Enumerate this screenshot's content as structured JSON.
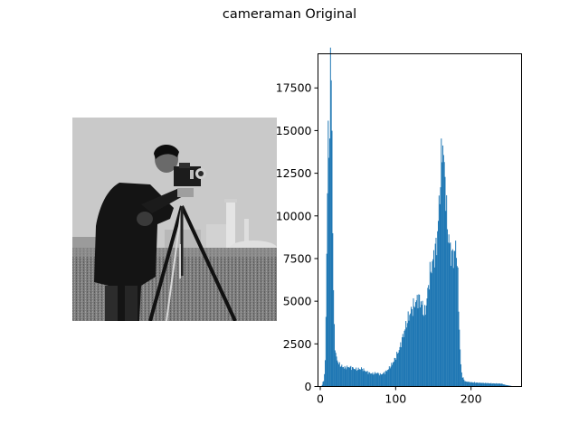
{
  "figure": {
    "title": "cameraman Original"
  },
  "image_panel": {
    "icon": "grayscale-photo-of-cameraman-with-tripod"
  },
  "chart_data": {
    "type": "bar",
    "title": "",
    "xlabel": "",
    "ylabel": "",
    "color": "#1f77b4",
    "xlim": [
      -3,
      267
    ],
    "ylim": [
      0,
      19500
    ],
    "grid": false,
    "x_ticks": [
      0,
      100,
      200
    ],
    "y_ticks": [
      0,
      2500,
      5000,
      7500,
      10000,
      12500,
      15000,
      17500
    ],
    "x_tick_labels": [
      "0",
      "100",
      "200"
    ],
    "y_tick_labels": [
      "0",
      "2500",
      "5000",
      "7500",
      "10000",
      "12500",
      "15000",
      "17500"
    ],
    "profile_points": [
      [
        0,
        0
      ],
      [
        2,
        0
      ],
      [
        3,
        200
      ],
      [
        5,
        400
      ],
      [
        7,
        1800
      ],
      [
        8,
        6500
      ],
      [
        9,
        9000
      ],
      [
        10,
        15300
      ],
      [
        11,
        13300
      ],
      [
        12,
        13500
      ],
      [
        13,
        18600
      ],
      [
        14,
        18300
      ],
      [
        15,
        17800
      ],
      [
        16,
        12000
      ],
      [
        17,
        7000
      ],
      [
        18,
        4000
      ],
      [
        19,
        2800
      ],
      [
        20,
        2000
      ],
      [
        22,
        1600
      ],
      [
        25,
        1300
      ],
      [
        28,
        1200
      ],
      [
        32,
        1100
      ],
      [
        38,
        1150
      ],
      [
        42,
        1100
      ],
      [
        48,
        1000
      ],
      [
        55,
        1050
      ],
      [
        60,
        900
      ],
      [
        65,
        800
      ],
      [
        70,
        750
      ],
      [
        75,
        800
      ],
      [
        80,
        700
      ],
      [
        85,
        800
      ],
      [
        90,
        1000
      ],
      [
        95,
        1300
      ],
      [
        100,
        1700
      ],
      [
        105,
        2200
      ],
      [
        110,
        3000
      ],
      [
        115,
        3800
      ],
      [
        120,
        4400
      ],
      [
        125,
        4800
      ],
      [
        130,
        5200
      ],
      [
        135,
        4800
      ],
      [
        138,
        4200
      ],
      [
        140,
        4600
      ],
      [
        145,
        6500
      ],
      [
        150,
        7500
      ],
      [
        155,
        8500
      ],
      [
        158,
        11000
      ],
      [
        160,
        12500
      ],
      [
        162,
        14700
      ],
      [
        164,
        13000
      ],
      [
        166,
        12000
      ],
      [
        168,
        9500
      ],
      [
        170,
        8800
      ],
      [
        172,
        8200
      ],
      [
        175,
        7500
      ],
      [
        178,
        7800
      ],
      [
        180,
        8300
      ],
      [
        182,
        7000
      ],
      [
        184,
        4000
      ],
      [
        186,
        1500
      ],
      [
        188,
        600
      ],
      [
        192,
        300
      ],
      [
        200,
        250
      ],
      [
        210,
        220
      ],
      [
        220,
        200
      ],
      [
        230,
        180
      ],
      [
        240,
        170
      ],
      [
        245,
        100
      ],
      [
        250,
        60
      ],
      [
        255,
        20
      ],
      [
        256,
        0
      ]
    ]
  }
}
